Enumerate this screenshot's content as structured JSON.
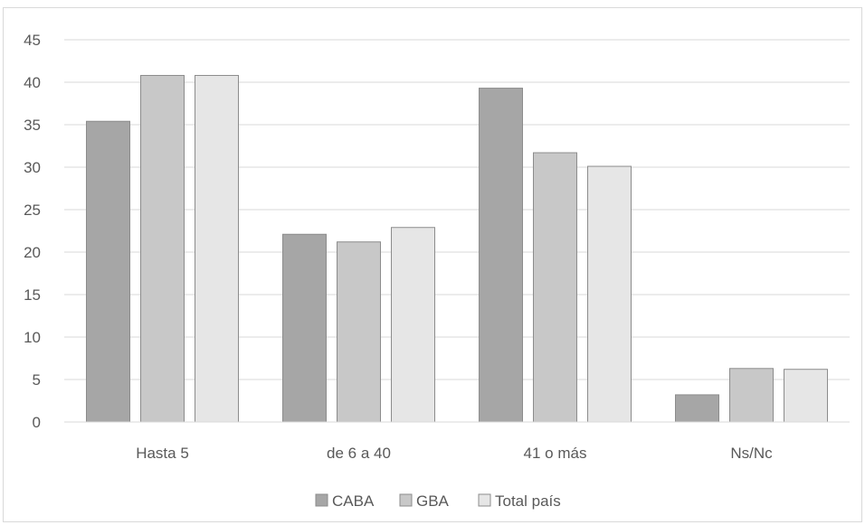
{
  "chart_data": {
    "type": "bar",
    "title": "",
    "xlabel": "",
    "ylabel": "",
    "categories": [
      "Hasta 5",
      "de 6 a 40",
      "41 o más",
      "Ns/Nc"
    ],
    "series": [
      {
        "name": "CABA",
        "values": [
          35.4,
          22.1,
          39.3,
          3.2
        ],
        "color": "#a6a6a6"
      },
      {
        "name": "GBA",
        "values": [
          40.8,
          21.2,
          31.7,
          6.3
        ],
        "color": "#c8c8c8"
      },
      {
        "name": "Total país",
        "values": [
          40.8,
          22.9,
          30.1,
          6.2
        ],
        "color": "#e6e6e6"
      }
    ],
    "ylim": [
      0,
      45
    ],
    "yticks": [
      0,
      5,
      10,
      15,
      20,
      25,
      30,
      35,
      40,
      45
    ],
    "grid": true,
    "legend_position": "bottom"
  }
}
